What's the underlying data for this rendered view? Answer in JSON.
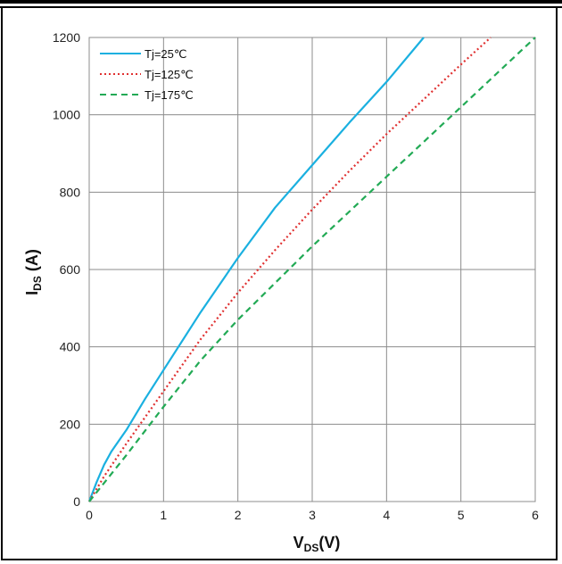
{
  "chart_data": {
    "type": "line",
    "xlabel": "V",
    "xlabel_sub": "DS",
    "xlabel_suffix": "(V)",
    "ylabel": "I",
    "ylabel_sub": "DS",
    "ylabel_suffix": " (A)",
    "xlim": [
      0,
      6
    ],
    "ylim": [
      0,
      1200
    ],
    "x_ticks": [
      "0",
      "1",
      "2",
      "3",
      "4",
      "5",
      "6"
    ],
    "y_ticks": [
      "0",
      "200",
      "400",
      "600",
      "800",
      "1000",
      "1200"
    ],
    "grid": true,
    "legend_position": "top-left",
    "series": [
      {
        "name": "Tj=25℃",
        "color": "#1ab0e0",
        "style": "solid",
        "x": [
          0,
          0.1,
          0.2,
          0.3,
          0.5,
          0.75,
          1.0,
          1.5,
          2.0,
          2.5,
          3.0,
          3.5,
          4.0,
          4.5
        ],
        "y": [
          0,
          50,
          95,
          130,
          185,
          265,
          340,
          490,
          630,
          760,
          870,
          980,
          1085,
          1200
        ]
      },
      {
        "name": "Tj=125℃",
        "color": "#e03030",
        "style": "dotted",
        "x": [
          0,
          0.2,
          0.5,
          1.0,
          1.5,
          2.0,
          2.5,
          3.0,
          3.5,
          4.0,
          4.5,
          5.0,
          5.4
        ],
        "y": [
          0,
          65,
          150,
          285,
          420,
          540,
          650,
          755,
          855,
          950,
          1040,
          1130,
          1200
        ]
      },
      {
        "name": "Tj=175℃",
        "color": "#22aa55",
        "style": "dashed",
        "x": [
          0,
          0.5,
          1.0,
          1.5,
          2.0,
          2.5,
          3.0,
          3.5,
          4.0,
          4.5,
          5.0,
          5.5,
          6.0
        ],
        "y": [
          0,
          120,
          245,
          365,
          470,
          565,
          660,
          750,
          840,
          930,
          1020,
          1110,
          1200
        ]
      }
    ]
  }
}
